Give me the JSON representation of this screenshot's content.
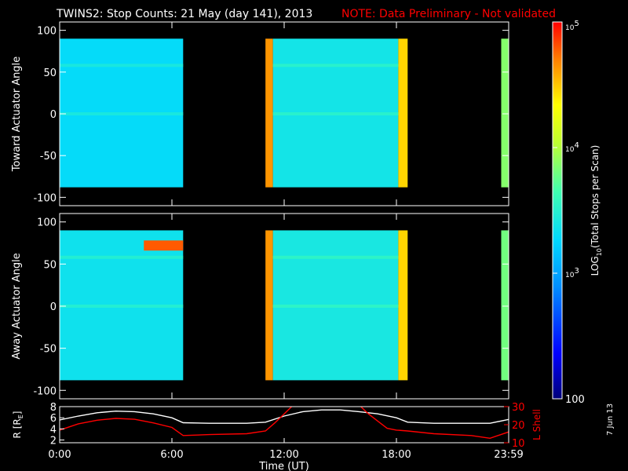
{
  "figure": {
    "title": "TWINS2: Stop Counts: 21 May (day 141), 2013",
    "note": "NOTE: Data Preliminary - Not validated",
    "date_stamp": "7 Jun 13",
    "colors": {
      "background": "#000000",
      "axes": "#ffffff",
      "note": "#ff0000",
      "lshell": "#ff0000",
      "radius": "#ffffff"
    }
  },
  "chart_data": [
    {
      "type": "heatmap",
      "ylabel": "Toward Actuator Angle",
      "ylim": [
        -110,
        110
      ],
      "yticks": [
        100,
        50,
        0,
        -50,
        -100
      ],
      "xlim": [
        0,
        24
      ],
      "data_gaps_hours": [
        [
          6.6,
          11.0
        ],
        [
          18.6,
          23.6
        ]
      ],
      "bands": [
        {
          "t0": 0.0,
          "t1": 6.6,
          "level": 0.43
        },
        {
          "t0": 11.0,
          "t1": 11.4,
          "level": 0.88
        },
        {
          "t0": 11.4,
          "t1": 18.1,
          "level": 0.46
        },
        {
          "t0": 18.1,
          "t1": 18.6,
          "level": 0.82
        },
        {
          "t0": 23.6,
          "t1": 24.0,
          "level": 0.62
        }
      ],
      "angle_range": [
        -88,
        90
      ]
    },
    {
      "type": "heatmap",
      "ylabel": "Away Actuator Angle",
      "ylim": [
        -110,
        110
      ],
      "yticks": [
        100,
        50,
        0,
        -50,
        -100
      ],
      "xlim": [
        0,
        24
      ],
      "data_gaps_hours": [
        [
          6.6,
          11.0
        ],
        [
          18.6,
          23.6
        ]
      ],
      "bands": [
        {
          "t0": 0.0,
          "t1": 6.6,
          "level": 0.45
        },
        {
          "t0": 11.0,
          "t1": 11.4,
          "level": 0.88
        },
        {
          "t0": 11.4,
          "t1": 18.1,
          "level": 0.47
        },
        {
          "t0": 18.1,
          "t1": 18.6,
          "level": 0.82
        },
        {
          "t0": 23.6,
          "t1": 24.0,
          "level": 0.6
        }
      ],
      "angle_range": [
        -88,
        90
      ],
      "hotspot": {
        "t0": 4.5,
        "t1": 6.6,
        "a0": 66,
        "a1": 78,
        "level": 0.93
      }
    },
    {
      "type": "line",
      "ylabel_left": "R [R",
      "ylabel_left_sub": "E",
      "ylabel_left_end": "]",
      "ylabel_right": "L Shell",
      "xlabel": "Time (UT)",
      "xticks": [
        {
          "t": 0,
          "label": "0:00"
        },
        {
          "t": 6,
          "label": "6:00"
        },
        {
          "t": 12,
          "label": "12:00"
        },
        {
          "t": 18,
          "label": "18:00"
        },
        {
          "t": 24,
          "label": "23:59"
        }
      ],
      "ylim_left": [
        1.5,
        8
      ],
      "yticks_left": [
        8,
        6,
        4,
        2
      ],
      "ylim_right": [
        10,
        30
      ],
      "yticks_right": [
        30,
        20,
        10
      ],
      "series": [
        {
          "axis": "left",
          "x": [
            0,
            1,
            2,
            3,
            4,
            5,
            6,
            6.6,
            8,
            10,
            11,
            12,
            13,
            14,
            15,
            16,
            17,
            18,
            18.6,
            20,
            22,
            23,
            24
          ],
          "y": [
            5.6,
            6.3,
            6.9,
            7.2,
            7.1,
            6.7,
            6.0,
            5.1,
            5.0,
            5.0,
            5.2,
            6.3,
            7.1,
            7.4,
            7.4,
            7.1,
            6.7,
            6.0,
            5.2,
            5.0,
            5.0,
            5.0,
            5.7
          ]
        },
        {
          "axis": "right",
          "x": [
            0,
            1,
            2,
            3,
            4,
            5,
            6,
            6.6,
            8,
            10,
            11,
            11.5,
            12,
            12.5,
            16,
            16.5,
            17,
            17.5,
            18,
            18.6,
            20,
            22,
            23,
            24
          ],
          "y": [
            17,
            20.5,
            22.5,
            23.5,
            23,
            21,
            18.5,
            14,
            14.5,
            15,
            16.5,
            21,
            26,
            31,
            31,
            26,
            22,
            18,
            17,
            16.5,
            15,
            14,
            12.5,
            16
          ]
        }
      ]
    }
  ],
  "colorbar": {
    "label_prefix": "LOG",
    "label_sub": "10",
    "label_suffix": "(Total Stops per Scan)",
    "ticks": [
      {
        "base": "10",
        "exp": "5",
        "frac": 1.0
      },
      {
        "base": "10",
        "exp": "4",
        "frac": 0.6667
      },
      {
        "base": "10",
        "exp": "3",
        "frac": 0.3333
      },
      {
        "base": "100",
        "exp": "",
        "frac": 0.0
      }
    ]
  }
}
